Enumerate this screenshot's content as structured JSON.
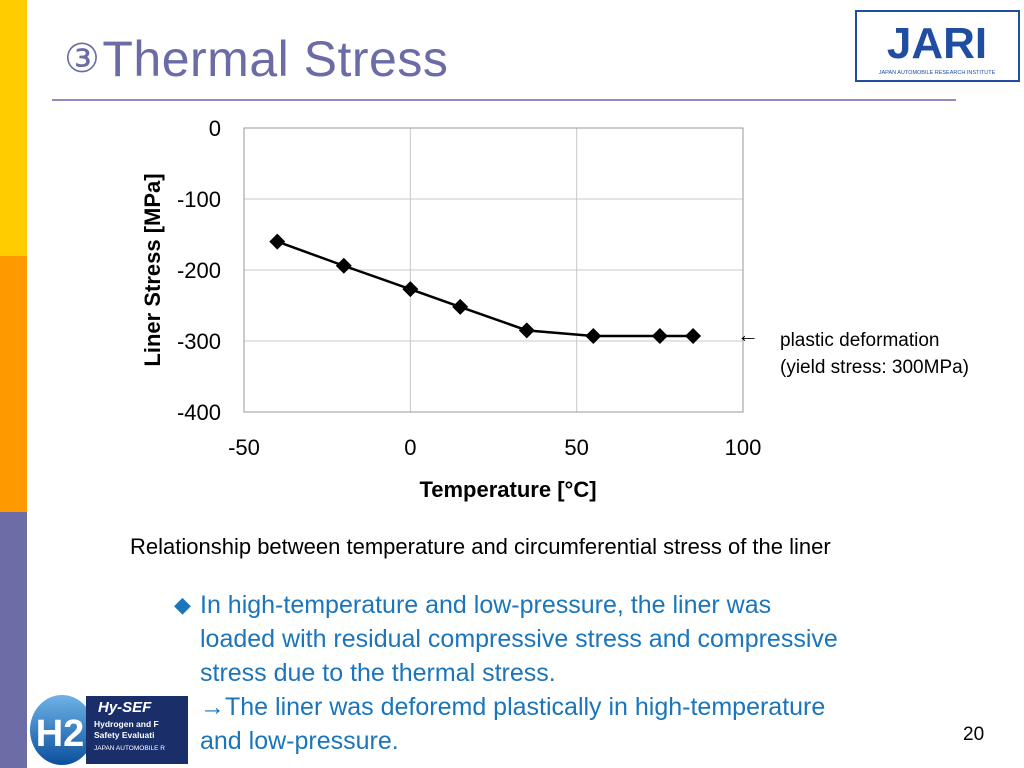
{
  "slide": {
    "title_number": "③",
    "title": "Thermal Stress",
    "caption": "Relationship between temperature and circumferential stress of the liner",
    "annotation_arrow": "←",
    "annotation_line1": "plastic deformation",
    "annotation_line2": "(yield stress: 300MPa)",
    "bullet_marker": "◆",
    "bullet_line1": "In high-temperature and low-pressure, the liner was",
    "bullet_line2": "loaded with residual compressive stress and compressive",
    "bullet_line3": "stress due to the thermal stress.",
    "bullet_line4": "→The liner was deforemd plastically in high-temperature",
    "bullet_line5": "and low-pressure.",
    "page_number": "20"
  },
  "logos": {
    "jari": "JARI",
    "jari_sub": "JAPAN AUTOMOBILE RESEARCH INSTITUTE",
    "h2": "H2",
    "hysef": "Hy-SEF",
    "hysef_line1": "Hydrogen and F",
    "hysef_line2": "Safety Evaluati",
    "hysef_line3": "JAPAN AUTOMOBILE R"
  },
  "chart_data": {
    "type": "line",
    "title": "",
    "xlabel": "Temperature [°C]",
    "ylabel": "Liner Stress [MPa]",
    "xlim": [
      -50,
      100
    ],
    "ylim": [
      -400,
      0
    ],
    "x_ticks": [
      -50,
      0,
      50,
      100
    ],
    "y_ticks": [
      0,
      -100,
      -200,
      -300,
      -400
    ],
    "x_tick_labels": [
      "-50",
      "0",
      "50",
      "100"
    ],
    "y_tick_labels": [
      "0",
      "-100",
      "-200",
      "-300",
      "-400"
    ],
    "grid": true,
    "legend": "none",
    "series": [
      {
        "color": "#000000",
        "marker": "diamond",
        "x": [
          -40,
          -20,
          0,
          15,
          35,
          55,
          75,
          85
        ],
        "y": [
          -160,
          -194,
          -227,
          -252,
          -285,
          -293,
          -293,
          -293
        ]
      }
    ]
  }
}
